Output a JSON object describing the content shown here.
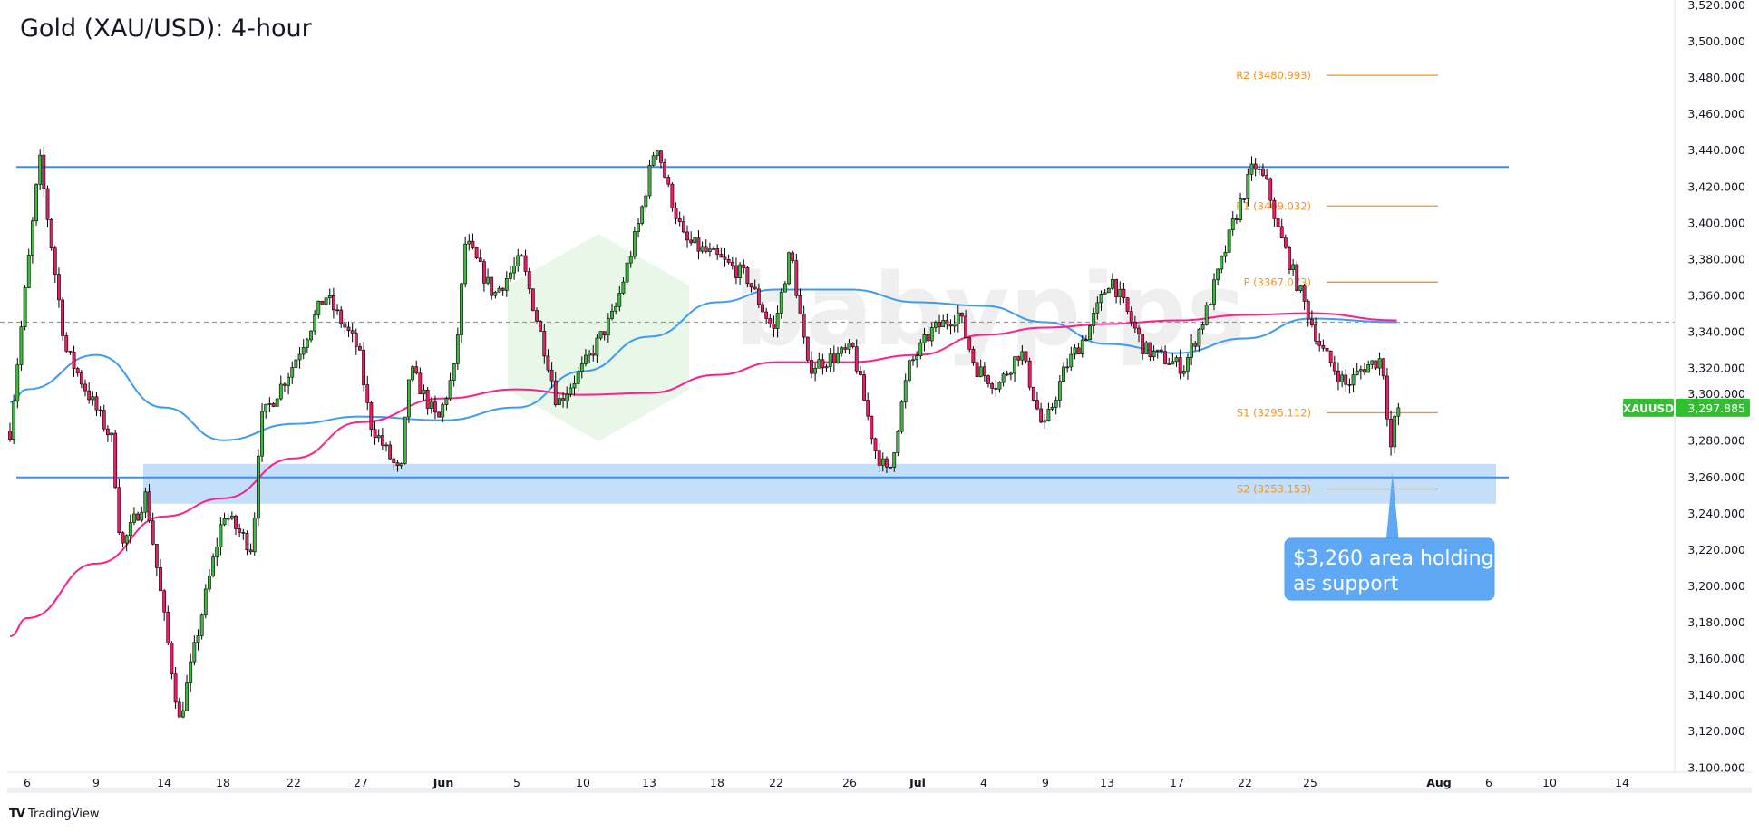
{
  "title": "Gold (XAU/USD): 4-hour",
  "footer": {
    "logo_text": "TradingView",
    "logo_mark": "TV"
  },
  "watermark": {
    "text": "babypips",
    "color": "#c8ebc8"
  },
  "colors": {
    "up_candle": "#3fb83f",
    "down_candle": "#e91e63",
    "wick": "#000000",
    "ma_fast": "#3d9bf0",
    "ma_slow": "#ff1f8a",
    "horizontal_lines": "#3d8ef0",
    "support_zone": "#bcdcfa",
    "pivot": "#f7931e",
    "price_label": "#2fbf2f",
    "callout": "#5ea8f5"
  },
  "chart_data": {
    "type": "candlestick",
    "symbol": "XAUUSD",
    "last_price": "3,297.885",
    "ylim": [
      3100,
      3520
    ],
    "y_tick_step": 20,
    "y_tick_labels": [
      "3,520.000",
      "3,500.000",
      "3,480.000",
      "3,460.000",
      "3,440.000",
      "3,420.000",
      "3,400.000",
      "3,380.000",
      "3,360.000",
      "3,340.000",
      "3,320.000",
      "3,300.000",
      "3,280.000",
      "3,260.000",
      "3,240.000",
      "3,220.000",
      "3,200.000",
      "3,180.000",
      "3,160.000",
      "3,140.000",
      "3,120.000",
      "3,100.000"
    ],
    "x_tick_labels": [
      "6",
      "9",
      "14",
      "18",
      "22",
      "27",
      "Jun",
      "5",
      "10",
      "13",
      "18",
      "22",
      "26",
      "Jul",
      "4",
      "9",
      "13",
      "17",
      "22",
      "25",
      "Aug",
      "6",
      "10",
      "14"
    ],
    "price_path": [
      [
        "2025-05-05T06:00",
        3285
      ],
      [
        "2025-05-06T13:00",
        3435
      ],
      [
        "2025-05-07T16:00",
        3330
      ],
      [
        "2025-05-10T04:00",
        3280
      ],
      [
        "2025-05-10T20:00",
        3220
      ],
      [
        "2025-05-12T16:00",
        3250
      ],
      [
        "2025-05-15T01:00",
        3125
      ],
      [
        "2025-05-16T23:00",
        3200
      ],
      [
        "2025-05-18T01:00",
        3240
      ],
      [
        "2025-05-19T16:00",
        3220
      ],
      [
        "2025-05-20T02:00",
        3290
      ],
      [
        "2025-05-21T21:00",
        3320
      ],
      [
        "2025-05-24T08:00",
        3360
      ],
      [
        "2025-05-26T20:00",
        3330
      ],
      [
        "2025-05-27T13:00",
        3290
      ],
      [
        "2025-05-29T10:00",
        3260
      ],
      [
        "2025-05-29T23:00",
        3320
      ],
      [
        "2025-05-31T16:00",
        3290
      ],
      [
        "2025-06-01T15:00",
        3320
      ],
      [
        "2025-06-02T05:00",
        3390
      ],
      [
        "2025-06-03T18:00",
        3360
      ],
      [
        "2025-06-05T08:00",
        3380
      ],
      [
        "2025-06-07T11:00",
        3320
      ],
      [
        "2025-06-08T01:00",
        3300
      ],
      [
        "2025-06-10T00:00",
        3320
      ],
      [
        "2025-06-11T10:00",
        3350
      ],
      [
        "2025-06-12T13:00",
        3400
      ],
      [
        "2025-06-13T12:00",
        3445
      ],
      [
        "2025-06-14T08:00",
        3420
      ],
      [
        "2025-06-15T14:00",
        3390
      ],
      [
        "2025-06-18T02:00",
        3380
      ],
      [
        "2025-06-20T00:00",
        3370
      ],
      [
        "2025-06-21T20:00",
        3340
      ],
      [
        "2025-06-22T19:00",
        3385
      ],
      [
        "2025-06-23T17:00",
        3320
      ],
      [
        "2025-06-26T06:00",
        3330
      ],
      [
        "2025-06-27T21:00",
        3275
      ],
      [
        "2025-06-28T21:00",
        3260
      ],
      [
        "2025-06-30T08:00",
        3320
      ],
      [
        "2025-07-01T15:00",
        3340
      ],
      [
        "2025-07-02T21:00",
        3350
      ],
      [
        "2025-07-03T15:00",
        3320
      ],
      [
        "2025-07-05T04:00",
        3310
      ],
      [
        "2025-07-07T00:00",
        3330
      ],
      [
        "2025-07-08T20:00",
        3285
      ],
      [
        "2025-07-10T07:00",
        3320
      ],
      [
        "2025-07-11T18:00",
        3340
      ],
      [
        "2025-07-13T05:00",
        3370
      ],
      [
        "2025-07-15T03:00",
        3330
      ],
      [
        "2025-07-17T12:00",
        3320
      ],
      [
        "2025-07-19T03:00",
        3350
      ],
      [
        "2025-07-20T09:00",
        3380
      ],
      [
        "2025-07-21T04:00",
        3400
      ],
      [
        "2025-07-22T10:00",
        3432
      ],
      [
        "2025-07-23T01:00",
        3420
      ],
      [
        "2025-07-23T13:00",
        3395
      ],
      [
        "2025-07-24T14:00",
        3360
      ],
      [
        "2025-07-25T15:00",
        3330
      ],
      [
        "2025-07-26T23:00",
        3310
      ],
      [
        "2025-07-27T21:00",
        3320
      ],
      [
        "2025-07-28T22:00",
        3325
      ],
      [
        "2025-07-29T09:00",
        3275
      ],
      [
        "2025-07-29T17:00",
        3297.885
      ]
    ],
    "moving_averages": [
      {
        "color_key": "ma_fast",
        "points": [
          [
            "2025-05-05T06:00",
            3301
          ],
          [
            "2025-05-06",
            3308
          ],
          [
            "2025-05-09",
            3327
          ],
          [
            "2025-05-14",
            3298
          ],
          [
            "2025-05-18",
            3280
          ],
          [
            "2025-05-22",
            3289
          ],
          [
            "2025-05-27",
            3293
          ],
          [
            "2025-06-01",
            3291
          ],
          [
            "2025-06-05",
            3298
          ],
          [
            "2025-06-10",
            3318
          ],
          [
            "2025-06-13",
            3337
          ],
          [
            "2025-06-18",
            3356
          ],
          [
            "2025-06-22",
            3363
          ],
          [
            "2025-06-26",
            3363
          ],
          [
            "2025-07-01",
            3356
          ],
          [
            "2025-07-04",
            3354
          ],
          [
            "2025-07-09",
            3345
          ],
          [
            "2025-07-13",
            3333
          ],
          [
            "2025-07-17",
            3328
          ],
          [
            "2025-07-22",
            3336
          ],
          [
            "2025-07-25",
            3347
          ],
          [
            "2025-07-29T17:00",
            3345
          ]
        ]
      },
      {
        "color_key": "ma_slow",
        "points": [
          [
            "2025-05-05T06:00",
            3172
          ],
          [
            "2025-05-06",
            3182
          ],
          [
            "2025-05-09",
            3212
          ],
          [
            "2025-05-14",
            3238
          ],
          [
            "2025-05-18",
            3248
          ],
          [
            "2025-05-22",
            3270
          ],
          [
            "2025-05-27",
            3290
          ],
          [
            "2025-06-01",
            3303
          ],
          [
            "2025-06-05",
            3308
          ],
          [
            "2025-06-10",
            3305
          ],
          [
            "2025-06-13",
            3306
          ],
          [
            "2025-06-18",
            3316
          ],
          [
            "2025-06-22",
            3323
          ],
          [
            "2025-06-26",
            3323
          ],
          [
            "2025-07-01",
            3327
          ],
          [
            "2025-07-04",
            3338
          ],
          [
            "2025-07-09",
            3342
          ],
          [
            "2025-07-13",
            3344
          ],
          [
            "2025-07-17",
            3346
          ],
          [
            "2025-07-22",
            3349
          ],
          [
            "2025-07-25",
            3350
          ],
          [
            "2025-07-29T17:00",
            3346
          ]
        ]
      }
    ],
    "horizontal_lines": [
      {
        "price": 3430.5,
        "style": "solid"
      },
      {
        "price": 3259.5,
        "style": "solid"
      },
      {
        "price": 3345,
        "style": "dashed"
      }
    ],
    "support_zone": {
      "from": 3245,
      "to": 3267
    },
    "pivots": [
      {
        "label": "R2 (3480.993)",
        "price": 3480.993
      },
      {
        "label": "R1 (3409.032)",
        "price": 3409.032
      },
      {
        "label": "P (3367.073)",
        "price": 3367.073
      },
      {
        "label": "S1 (3295.112)",
        "price": 3295.112
      },
      {
        "label": "S2 (3253.153)",
        "price": 3253.153
      }
    ],
    "annotation": {
      "lines": [
        "$3,260 area holding",
        "as support"
      ],
      "points_to_price": 3262
    }
  }
}
